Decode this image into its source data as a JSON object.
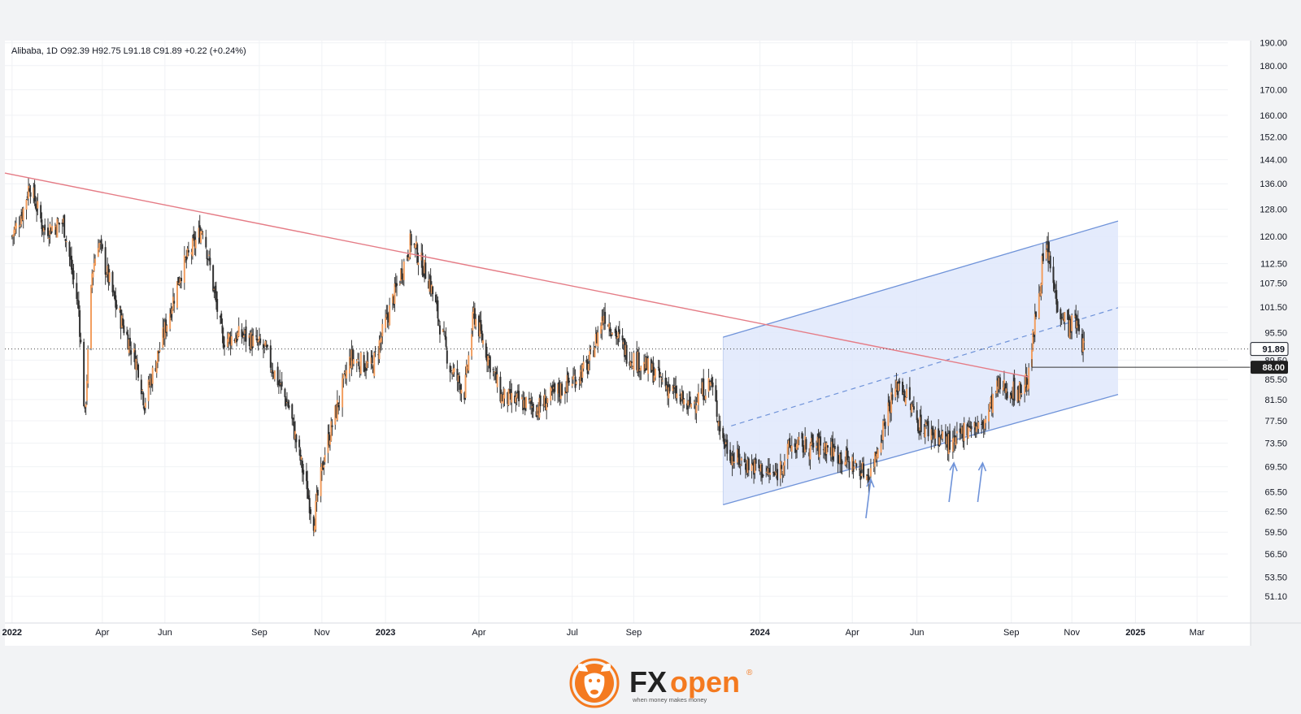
{
  "header": {
    "symbol": "Alibaba",
    "interval": "1D",
    "ohlc": "O92.39  H92.75  L91.18  C91.89  +0.22 (+0.24%)"
  },
  "logo": {
    "brand_fx": "FX",
    "brand_open": "open",
    "registered": "®",
    "tagline": "when money makes money",
    "icon": "bull-head-icon"
  },
  "colors": {
    "up_candle": "#f29e5f",
    "down_candle": "#303030",
    "resistance_line": "#e57c86",
    "channel_line": "#6f93d9",
    "channel_fill": "#dfe8fb",
    "brand_orange": "#f47a20"
  },
  "chart_data": {
    "type": "candlestick",
    "title": "Alibaba, 1D",
    "y_scale": "log",
    "ylim": [
      48.9,
      191.0
    ],
    "grid": true,
    "price_axis_ticks": [
      "51.10",
      "53.50",
      "56.50",
      "59.50",
      "62.50",
      "65.50",
      "69.50",
      "73.50",
      "77.50",
      "81.50",
      "85.50",
      "89.50",
      "95.50",
      "101.50",
      "107.50",
      "112.50",
      "120.00",
      "128.00",
      "136.00",
      "144.00",
      "152.00",
      "160.00",
      "170.00",
      "180.00",
      "190.00"
    ],
    "time_axis_labels": [
      "2022",
      "Apr",
      "Jun",
      "Sep",
      "Nov",
      "2023",
      "Apr",
      "Jul",
      "Sep",
      "2024",
      "Apr",
      "Jun",
      "Sep",
      "Nov",
      "2025",
      "Mar"
    ],
    "last_price": "91.89",
    "level_label": "88.00",
    "price_path": [
      {
        "date": "2022-01-03",
        "close": 120
      },
      {
        "date": "2022-01-14",
        "close": 128
      },
      {
        "date": "2022-01-20",
        "close": 136
      },
      {
        "date": "2022-02-03",
        "close": 122
      },
      {
        "date": "2022-02-22",
        "close": 124
      },
      {
        "date": "2022-03-09",
        "close": 101
      },
      {
        "date": "2022-03-15",
        "close": 78
      },
      {
        "date": "2022-03-22",
        "close": 110
      },
      {
        "date": "2022-03-28",
        "close": 119
      },
      {
        "date": "2022-04-14",
        "close": 102
      },
      {
        "date": "2022-05-06",
        "close": 88
      },
      {
        "date": "2022-05-12",
        "close": 81
      },
      {
        "date": "2022-05-27",
        "close": 92
      },
      {
        "date": "2022-06-16",
        "close": 110
      },
      {
        "date": "2022-07-08",
        "close": 123
      },
      {
        "date": "2022-07-27",
        "close": 94
      },
      {
        "date": "2022-08-16",
        "close": 95
      },
      {
        "date": "2022-09-06",
        "close": 92
      },
      {
        "date": "2022-09-30",
        "close": 80
      },
      {
        "date": "2022-10-24",
        "close": 61
      },
      {
        "date": "2022-11-04",
        "close": 72
      },
      {
        "date": "2022-11-29",
        "close": 90
      },
      {
        "date": "2022-12-20",
        "close": 88
      },
      {
        "date": "2023-01-27",
        "close": 119
      },
      {
        "date": "2023-02-14",
        "close": 108
      },
      {
        "date": "2023-03-06",
        "close": 88
      },
      {
        "date": "2023-03-20",
        "close": 83
      },
      {
        "date": "2023-03-29",
        "close": 100
      },
      {
        "date": "2023-04-25",
        "close": 82
      },
      {
        "date": "2023-05-31",
        "close": 80
      },
      {
        "date": "2023-07-18",
        "close": 88
      },
      {
        "date": "2023-08-03",
        "close": 100
      },
      {
        "date": "2023-08-25",
        "close": 91
      },
      {
        "date": "2023-09-20",
        "close": 87
      },
      {
        "date": "2023-10-24",
        "close": 80
      },
      {
        "date": "2023-11-15",
        "close": 85
      },
      {
        "date": "2023-11-27",
        "close": 74
      },
      {
        "date": "2023-12-07",
        "close": 71
      },
      {
        "date": "2024-01-17",
        "close": 68
      },
      {
        "date": "2024-02-01",
        "close": 73
      },
      {
        "date": "2024-03-06",
        "close": 73
      },
      {
        "date": "2024-04-18",
        "close": 68
      },
      {
        "date": "2024-05-06",
        "close": 80
      },
      {
        "date": "2024-05-17",
        "close": 85
      },
      {
        "date": "2024-06-05",
        "close": 77
      },
      {
        "date": "2024-07-09",
        "close": 73
      },
      {
        "date": "2024-07-23",
        "close": 77
      },
      {
        "date": "2024-08-05",
        "close": 76
      },
      {
        "date": "2024-08-21",
        "close": 84
      },
      {
        "date": "2024-09-10",
        "close": 83
      },
      {
        "date": "2024-09-20",
        "close": 86
      },
      {
        "date": "2024-09-26",
        "close": 98
      },
      {
        "date": "2024-10-03",
        "close": 112
      },
      {
        "date": "2024-10-08",
        "close": 116
      },
      {
        "date": "2024-10-17",
        "close": 103
      },
      {
        "date": "2024-10-29",
        "close": 97
      },
      {
        "date": "2024-11-05",
        "close": 98
      },
      {
        "date": "2024-11-13",
        "close": 91.89
      }
    ],
    "annotations": {
      "resistance_line": {
        "from": {
          "date": "2021-12-27",
          "price": 139.5
        },
        "to": {
          "date": "2024-09-20",
          "price": 86
        }
      },
      "ascending_channel": {
        "lower": {
          "from": {
            "date": "2023-11-27",
            "price": 63.5
          },
          "to": {
            "date": "2024-12-16",
            "price": 82.5
          }
        },
        "upper": {
          "from": {
            "date": "2023-11-27",
            "price": 94.5
          },
          "to": {
            "date": "2024-12-16",
            "price": 124.5
          }
        },
        "midline": "dashed"
      },
      "horizontal_level": {
        "price": 88.0,
        "from_date": "2024-09-23"
      },
      "support_arrows": [
        "2024-04-19",
        "2024-07-09",
        "2024-08-06"
      ]
    }
  }
}
